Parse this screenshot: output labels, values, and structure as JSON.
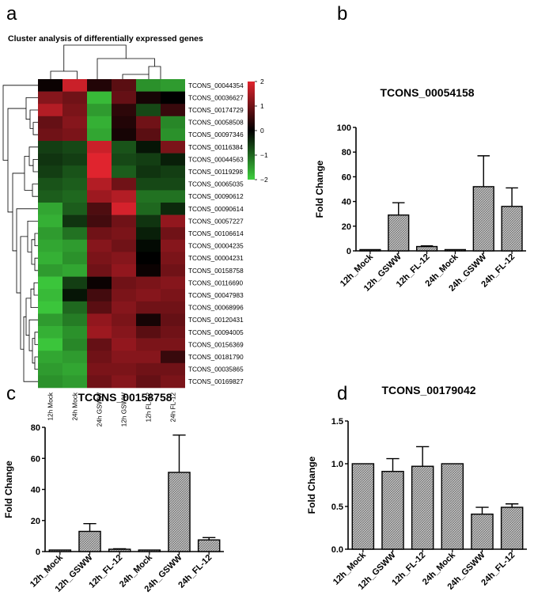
{
  "panel_labels": [
    "a",
    "b",
    "c",
    "d"
  ],
  "colors": {
    "heat_low": "#3ecf3e",
    "heat_mid": "#000000",
    "heat_high": "#e0242e",
    "bar_fill": "#c8c8c8",
    "axis": "#000000"
  },
  "chart_data": [
    {
      "type": "heatmap",
      "panel": "a",
      "title": "Cluster analysis of differentially expressed genes",
      "columns": [
        "12h Mock",
        "24h Mock",
        "24h GSWW",
        "12h GSWW",
        "12h FL-12",
        "24h FL-12"
      ],
      "rows": [
        "TCONS_00044354",
        "TCONS_00036627",
        "TCONS_00174729",
        "TCONS_00058508",
        "TCONS_00097346",
        "TCONS_00116384",
        "TCONS_00044563",
        "TCONS_00119298",
        "TCONS_00065035",
        "TCONS_00090612",
        "TCONS_00090614",
        "TCONS_00057227",
        "TCONS_00106614",
        "TCONS_00004235",
        "TCONS_00004231",
        "TCONS_00158758",
        "TCONS_00116690",
        "TCONS_00047983",
        "TCONS_00068996",
        "TCONS_00120431",
        "TCONS_00094005",
        "TCONS_00156369",
        "TCONS_00181790",
        "TCONS_00035865",
        "TCONS_00169827"
      ],
      "values": [
        [
          0.1,
          1.8,
          0.3,
          0.8,
          -1.4,
          -1.5
        ],
        [
          1.2,
          1.0,
          -1.8,
          0.9,
          0.2,
          0.0
        ],
        [
          1.6,
          1.1,
          -1.5,
          0.4,
          -0.7,
          0.5
        ],
        [
          0.9,
          1.2,
          -1.7,
          0.3,
          1.0,
          -1.3
        ],
        [
          1.0,
          1.1,
          -1.6,
          0.2,
          0.8,
          -1.4
        ],
        [
          -0.6,
          -0.7,
          1.8,
          -0.8,
          -0.2,
          1.1
        ],
        [
          -0.5,
          -0.6,
          2.0,
          -0.7,
          -0.6,
          -0.3
        ],
        [
          -0.6,
          -0.8,
          2.0,
          -0.9,
          -0.5,
          -0.6
        ],
        [
          -0.8,
          -0.9,
          1.6,
          1.0,
          -0.7,
          -0.7
        ],
        [
          -0.9,
          -1.0,
          1.4,
          1.6,
          -1.1,
          -1.1
        ],
        [
          -1.6,
          -0.9,
          0.7,
          1.9,
          -1.0,
          -0.4
        ],
        [
          -1.7,
          -0.5,
          0.6,
          1.0,
          -0.5,
          1.3
        ],
        [
          -1.5,
          -1.1,
          1.0,
          1.1,
          -0.3,
          1.0
        ],
        [
          -1.6,
          -1.5,
          1.2,
          1.0,
          -0.1,
          1.2
        ],
        [
          -1.7,
          -1.4,
          1.1,
          1.2,
          0.0,
          1.1
        ],
        [
          -1.5,
          -1.6,
          1.0,
          1.3,
          0.1,
          1.0
        ],
        [
          -1.9,
          -0.6,
          0.1,
          1.0,
          1.1,
          1.2
        ],
        [
          -1.8,
          -0.2,
          0.6,
          1.1,
          1.2,
          1.1
        ],
        [
          -1.9,
          -1.0,
          0.8,
          1.2,
          1.0,
          1.0
        ],
        [
          -1.5,
          -1.2,
          1.3,
          1.1,
          0.2,
          0.9
        ],
        [
          -1.7,
          -1.4,
          1.4,
          1.2,
          0.8,
          1.0
        ],
        [
          -1.9,
          -1.3,
          0.9,
          1.3,
          1.1,
          1.1
        ],
        [
          -1.6,
          -1.5,
          1.0,
          1.2,
          1.2,
          0.5
        ],
        [
          -1.5,
          -1.6,
          1.1,
          1.1,
          1.0,
          1.0
        ],
        [
          -1.4,
          -1.5,
          1.0,
          1.2,
          0.9,
          1.1
        ]
      ],
      "color_scale": {
        "min": -2,
        "max": 2,
        "ticks": [
          "2",
          "1",
          "0",
          "−1",
          "−2"
        ]
      }
    },
    {
      "type": "bar",
      "panel": "b",
      "title": "TCONS_00054158",
      "ylabel": "Fold Change",
      "categories": [
        "12h_Mock",
        "12h_GSWW",
        "12h_FL-12",
        "24h_Mock",
        "24h_GSWW",
        "24h_FL-12"
      ],
      "values": [
        1,
        29,
        3.5,
        1,
        52,
        36
      ],
      "errors": [
        0,
        10,
        0.5,
        0,
        25,
        15
      ],
      "ylim": [
        0,
        100
      ],
      "yticks": [
        "0",
        "20",
        "40",
        "60",
        "80",
        "100"
      ]
    },
    {
      "type": "bar",
      "panel": "c",
      "title": "TCONS_00158758",
      "ylabel": "Fold Change",
      "categories": [
        "12h_Mock",
        "12h_GSWW",
        "12h_FL-12",
        "24h_Mock",
        "24h_GSWW",
        "24h_FL-12"
      ],
      "values": [
        1,
        13,
        1.5,
        1,
        51,
        7.5
      ],
      "errors": [
        0,
        5,
        0.3,
        0,
        24,
        1.5
      ],
      "ylim": [
        0,
        80
      ],
      "yticks": [
        "0",
        "20",
        "40",
        "60",
        "80"
      ]
    },
    {
      "type": "bar",
      "panel": "d",
      "title": "TCONS_00179042",
      "ylabel": "Fold Change",
      "categories": [
        "12h_Mock",
        "12h_GSWW",
        "12h_FL-12",
        "24h_Mock",
        "24h_GSWW",
        "24h_FL-12"
      ],
      "values": [
        1.0,
        0.91,
        0.97,
        1.0,
        0.41,
        0.49
      ],
      "errors": [
        0,
        0.15,
        0.23,
        0,
        0.08,
        0.04
      ],
      "ylim": [
        0,
        1.5
      ],
      "yticks": [
        "0.0",
        "0.5",
        "1.0",
        "1.5"
      ]
    }
  ]
}
